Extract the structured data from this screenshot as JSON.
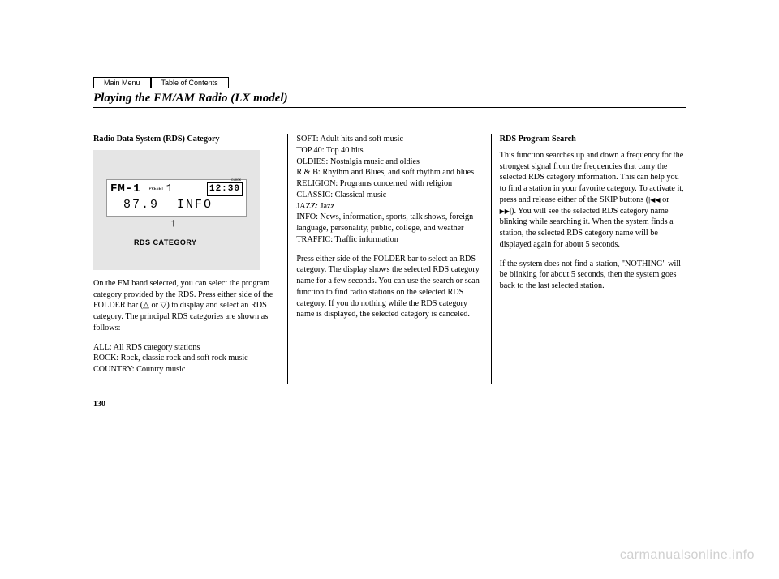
{
  "nav": {
    "main": "Main Menu",
    "toc": "Table of Contents"
  },
  "heading": "Playing the FM/AM Radio (LX model)",
  "col1": {
    "subhead": "Radio Data System (RDS) Category",
    "lcd": {
      "band": "FM-1",
      "preset_lbl": "PRESET",
      "preset_num": "1",
      "clock_lbl": "CLOCK",
      "clock": "12:30",
      "freq": "87.9",
      "info": "INFO"
    },
    "rds_label": "RDS CATEGORY",
    "para1": "On the FM band selected, you can select the program category provided by the RDS. Press either side of the FOLDER bar (",
    "para1b": ") to display and select an RDS category. The principal RDS categories are shown as follows:",
    "list1a": "ALL: All RDS category stations",
    "list1b": "ROCK: Rock, classic rock and soft rock music",
    "list1c": "COUNTRY: Country music"
  },
  "col2": {
    "l1": "SOFT: Adult hits and soft music",
    "l2": "TOP 40: Top 40 hits",
    "l3": "OLDIES: Nostalgia music and oldies",
    "l4": "R & B: Rhythm and Blues, and soft rhythm and blues",
    "l5": "RELIGION: Programs concerned with religion",
    "l6": "CLASSIC: Classical music",
    "l7": "JAZZ: Jazz",
    "l8": "INFO: News, information, sports, talk shows, foreign language, personality, public, college, and weather",
    "l9": "TRAFFIC: Traffic information",
    "para2": "Press either side of the FOLDER bar to select an RDS category. The display shows the selected RDS category name for a few seconds. You can use the search or scan function to find radio stations on the selected RDS category. If you do nothing while the RDS category name is displayed, the selected category is canceled."
  },
  "col3": {
    "subhead": "RDS Program Search",
    "para1a": "This function searches up and down a frequency for the strongest signal from the frequencies that carry the selected RDS category information. This can help you to find a station in your favorite category. To activate it, press and release either of the SKIP buttons (",
    "skip1": "|◀◀",
    "or": " or ",
    "skip2": "▶▶|",
    "para1b": "). You will see the selected RDS category name blinking while searching it. When the system finds a station, the selected RDS category name will be displayed again for about 5 seconds.",
    "para2": "If the system does not find a station, \"NOTHING\" will be blinking for about 5 seconds, then the system goes back to the last selected station."
  },
  "pagenum": "130",
  "watermark": "carmanualsonline.info"
}
